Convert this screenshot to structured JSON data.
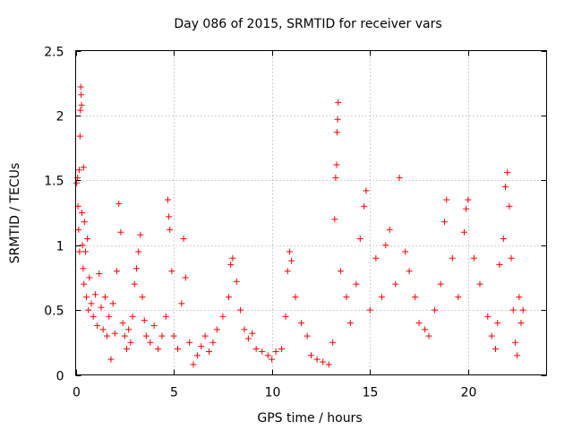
{
  "chart_data": {
    "type": "scatter",
    "title": "Day 086 of 2015, SRMTID for receiver vars",
    "xlabel": "GPS time / hours",
    "ylabel": "SRMTID / TECUs",
    "xlim": [
      0,
      24
    ],
    "ylim": [
      0,
      2.5
    ],
    "xticks": [
      0,
      5,
      10,
      15,
      20
    ],
    "yticks": [
      0,
      0.5,
      1,
      1.5,
      2,
      2.5
    ],
    "xtick_labels": [
      "0",
      "5",
      "10",
      "15",
      "20"
    ],
    "ytick_labels": [
      "0",
      "0.5",
      "1",
      "1.5",
      "2",
      "2.5"
    ],
    "grid": true,
    "marker": "+",
    "color": "#ff0000",
    "series": [
      {
        "name": "SRMTID",
        "points": [
          [
            0.05,
            1.48
          ],
          [
            0.1,
            1.52
          ],
          [
            0.12,
            1.3
          ],
          [
            0.15,
            1.12
          ],
          [
            0.18,
            1.58
          ],
          [
            0.2,
            0.95
          ],
          [
            0.22,
            1.84
          ],
          [
            0.24,
            2.04
          ],
          [
            0.26,
            2.22
          ],
          [
            0.28,
            2.16
          ],
          [
            0.3,
            2.08
          ],
          [
            0.32,
            1.25
          ],
          [
            0.35,
            1.0
          ],
          [
            0.38,
            0.82
          ],
          [
            0.4,
            1.6
          ],
          [
            0.42,
            0.7
          ],
          [
            0.45,
            1.18
          ],
          [
            0.5,
            0.95
          ],
          [
            0.55,
            0.6
          ],
          [
            0.6,
            1.05
          ],
          [
            0.65,
            0.5
          ],
          [
            0.7,
            0.75
          ],
          [
            0.8,
            0.55
          ],
          [
            0.9,
            0.45
          ],
          [
            1.0,
            0.62
          ],
          [
            1.1,
            0.38
          ],
          [
            1.2,
            0.78
          ],
          [
            1.3,
            0.52
          ],
          [
            1.4,
            0.35
          ],
          [
            1.5,
            0.6
          ],
          [
            1.6,
            0.3
          ],
          [
            1.7,
            0.45
          ],
          [
            1.8,
            0.12
          ],
          [
            1.9,
            0.55
          ],
          [
            2.0,
            0.32
          ],
          [
            2.1,
            0.8
          ],
          [
            2.2,
            1.32
          ],
          [
            2.3,
            1.1
          ],
          [
            2.4,
            0.4
          ],
          [
            2.5,
            0.3
          ],
          [
            2.6,
            0.2
          ],
          [
            2.7,
            0.35
          ],
          [
            2.8,
            0.25
          ],
          [
            2.9,
            0.45
          ],
          [
            3.0,
            0.7
          ],
          [
            3.1,
            0.82
          ],
          [
            3.2,
            0.95
          ],
          [
            3.3,
            1.08
          ],
          [
            3.4,
            0.6
          ],
          [
            3.5,
            0.42
          ],
          [
            3.6,
            0.3
          ],
          [
            3.8,
            0.25
          ],
          [
            4.0,
            0.38
          ],
          [
            4.2,
            0.2
          ],
          [
            4.4,
            0.3
          ],
          [
            4.6,
            0.45
          ],
          [
            4.7,
            1.35
          ],
          [
            4.75,
            1.22
          ],
          [
            4.8,
            1.12
          ],
          [
            4.9,
            0.8
          ],
          [
            5.0,
            0.3
          ],
          [
            5.2,
            0.2
          ],
          [
            5.4,
            0.55
          ],
          [
            5.5,
            1.05
          ],
          [
            5.6,
            0.75
          ],
          [
            5.8,
            0.25
          ],
          [
            6.0,
            0.08
          ],
          [
            6.2,
            0.15
          ],
          [
            6.4,
            0.22
          ],
          [
            6.6,
            0.3
          ],
          [
            6.8,
            0.18
          ],
          [
            7.0,
            0.25
          ],
          [
            7.2,
            0.35
          ],
          [
            7.5,
            0.45
          ],
          [
            7.8,
            0.6
          ],
          [
            7.9,
            0.85
          ],
          [
            8.0,
            0.9
          ],
          [
            8.2,
            0.72
          ],
          [
            8.4,
            0.5
          ],
          [
            8.6,
            0.35
          ],
          [
            8.8,
            0.28
          ],
          [
            9.0,
            0.32
          ],
          [
            9.2,
            0.2
          ],
          [
            9.5,
            0.18
          ],
          [
            9.8,
            0.15
          ],
          [
            10.0,
            0.12
          ],
          [
            10.2,
            0.18
          ],
          [
            10.5,
            0.2
          ],
          [
            10.7,
            0.45
          ],
          [
            10.8,
            0.8
          ],
          [
            10.9,
            0.95
          ],
          [
            11.0,
            0.88
          ],
          [
            11.2,
            0.6
          ],
          [
            11.5,
            0.4
          ],
          [
            11.8,
            0.3
          ],
          [
            12.0,
            0.15
          ],
          [
            12.3,
            0.12
          ],
          [
            12.6,
            0.1
          ],
          [
            12.9,
            0.08
          ],
          [
            13.1,
            0.25
          ],
          [
            13.2,
            1.2
          ],
          [
            13.25,
            1.52
          ],
          [
            13.3,
            1.62
          ],
          [
            13.32,
            1.87
          ],
          [
            13.35,
            1.97
          ],
          [
            13.38,
            2.1
          ],
          [
            13.5,
            0.8
          ],
          [
            13.8,
            0.6
          ],
          [
            14.0,
            0.4
          ],
          [
            14.3,
            0.7
          ],
          [
            14.5,
            1.05
          ],
          [
            14.7,
            1.3
          ],
          [
            14.8,
            1.42
          ],
          [
            15.0,
            0.5
          ],
          [
            15.3,
            0.9
          ],
          [
            15.6,
            0.6
          ],
          [
            15.8,
            1.0
          ],
          [
            16.0,
            1.12
          ],
          [
            16.3,
            0.7
          ],
          [
            16.5,
            1.52
          ],
          [
            16.8,
            0.95
          ],
          [
            17.0,
            0.8
          ],
          [
            17.3,
            0.6
          ],
          [
            17.5,
            0.4
          ],
          [
            17.8,
            0.35
          ],
          [
            18.0,
            0.3
          ],
          [
            18.3,
            0.5
          ],
          [
            18.6,
            0.7
          ],
          [
            18.8,
            1.18
          ],
          [
            18.9,
            1.35
          ],
          [
            19.2,
            0.9
          ],
          [
            19.5,
            0.6
          ],
          [
            19.8,
            1.1
          ],
          [
            19.9,
            1.28
          ],
          [
            20.0,
            1.35
          ],
          [
            20.3,
            0.9
          ],
          [
            20.6,
            0.7
          ],
          [
            21.0,
            0.45
          ],
          [
            21.2,
            0.3
          ],
          [
            21.4,
            0.2
          ],
          [
            21.5,
            0.4
          ],
          [
            21.6,
            0.85
          ],
          [
            21.8,
            1.05
          ],
          [
            21.9,
            1.45
          ],
          [
            22.0,
            1.56
          ],
          [
            22.1,
            1.3
          ],
          [
            22.2,
            0.9
          ],
          [
            22.3,
            0.5
          ],
          [
            22.4,
            0.25
          ],
          [
            22.5,
            0.15
          ],
          [
            22.6,
            0.6
          ],
          [
            22.7,
            0.4
          ],
          [
            22.8,
            0.5
          ]
        ]
      }
    ]
  }
}
